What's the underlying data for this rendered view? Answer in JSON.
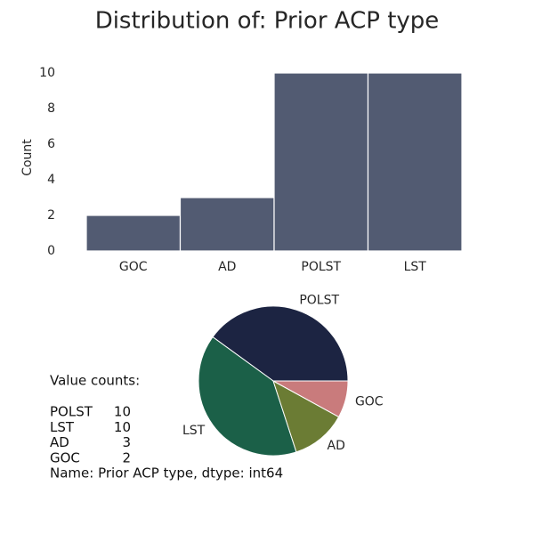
{
  "title": "Distribution of: Prior ACP type",
  "chart_data": [
    {
      "type": "bar",
      "categories": [
        "GOC",
        "AD",
        "POLST",
        "LST"
      ],
      "values": [
        2,
        3,
        10,
        10
      ],
      "color": "#525b72",
      "ylabel": "Count",
      "ylim": [
        0,
        10
      ],
      "yticks": [
        0,
        2,
        4,
        6,
        8,
        10
      ],
      "grid": false
    },
    {
      "type": "pie",
      "categories": [
        "POLST",
        "LST",
        "AD",
        "GOC"
      ],
      "values": [
        10,
        10,
        3,
        2
      ],
      "colors": [
        "#1c2442",
        "#1b6048",
        "#6b7c34",
        "#c97b7c"
      ]
    }
  ],
  "value_counts": {
    "heading": "Value counts:",
    "rows": [
      {
        "label": "POLST",
        "count": 10
      },
      {
        "label": "LST",
        "count": 10
      },
      {
        "label": "AD",
        "count": 3
      },
      {
        "label": "GOC",
        "count": 2
      }
    ],
    "footer": "Name: Prior ACP type, dtype: int64"
  }
}
